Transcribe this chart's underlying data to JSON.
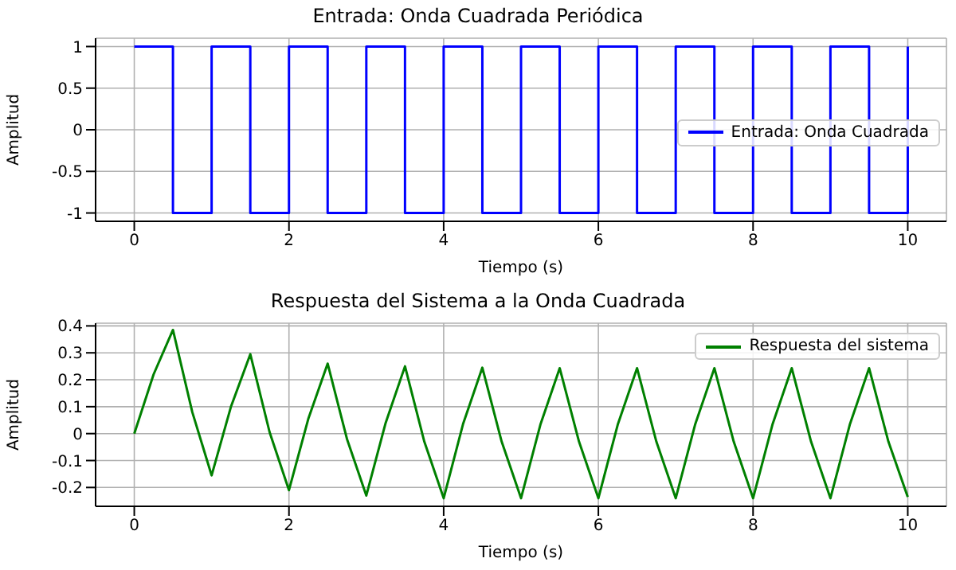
{
  "chart_data": [
    {
      "type": "step",
      "title": "Entrada: Onda Cuadrada Periódica",
      "xlabel": "Tiempo (s)",
      "ylabel": "Amplitud",
      "x": [
        0,
        0.5,
        1,
        1.5,
        2,
        2.5,
        3,
        3.5,
        4,
        4.5,
        5,
        5.5,
        6,
        6.5,
        7,
        7.5,
        8,
        8.5,
        9,
        9.5,
        10
      ],
      "series": [
        {
          "name": "Entrada: Onda Cuadrada",
          "color": "#0000ff",
          "values": [
            1,
            -1,
            1,
            -1,
            1,
            -1,
            1,
            -1,
            1,
            -1,
            1,
            -1,
            1,
            -1,
            1,
            -1,
            1,
            -1,
            1,
            -1,
            1
          ]
        }
      ],
      "xlim": [
        -0.5,
        10.5
      ],
      "xticks": [
        0,
        2,
        4,
        6,
        8,
        10
      ],
      "ylim": [
        -1.1,
        1.1
      ],
      "yticks": [
        -1,
        -0.5,
        0,
        0.5,
        1
      ],
      "grid": true,
      "legend": "center right"
    },
    {
      "type": "line",
      "title": "Respuesta del Sistema a la Onda Cuadrada",
      "xlabel": "Tiempo (s)",
      "ylabel": "Amplitud",
      "x": [
        0,
        0.25,
        0.5,
        0.75,
        1,
        1.25,
        1.5,
        1.75,
        2,
        2.25,
        2.5,
        2.75,
        3,
        3.25,
        3.5,
        3.75,
        4,
        4.25,
        4.5,
        4.75,
        5,
        5.25,
        5.5,
        5.75,
        6,
        6.25,
        6.5,
        6.75,
        7,
        7.25,
        7.5,
        7.75,
        8,
        8.25,
        8.5,
        8.75,
        9,
        9.25,
        9.5,
        9.75,
        10
      ],
      "series": [
        {
          "name": "Respuesta del sistema",
          "color": "#008000",
          "values": [
            0,
            0.22,
            0.385,
            0.08,
            -0.155,
            0.1,
            0.295,
            0.005,
            -0.21,
            0.055,
            0.26,
            -0.02,
            -0.23,
            0.04,
            0.25,
            -0.03,
            -0.24,
            0.035,
            0.245,
            -0.03,
            -0.24,
            0.033,
            0.243,
            -0.03,
            -0.24,
            0.033,
            0.243,
            -0.03,
            -0.24,
            0.033,
            0.243,
            -0.03,
            -0.24,
            0.033,
            0.243,
            -0.03,
            -0.24,
            0.033,
            0.243,
            -0.03,
            -0.235
          ]
        }
      ],
      "xlim": [
        -0.5,
        10.5
      ],
      "xticks": [
        0,
        2,
        4,
        6,
        8,
        10
      ],
      "ylim": [
        -0.27,
        0.41
      ],
      "yticks": [
        -0.2,
        -0.1,
        0,
        0.1,
        0.2,
        0.3,
        0.4
      ],
      "grid": true,
      "legend": "top right"
    }
  ]
}
